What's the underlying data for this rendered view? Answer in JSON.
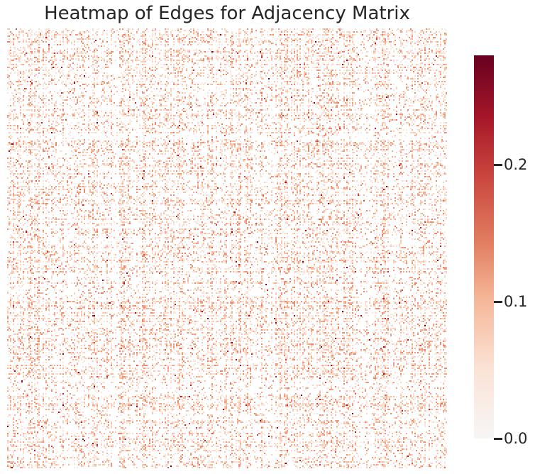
{
  "chart_data": {
    "type": "heatmap",
    "title": "Heatmap of Edges for Adjacency Matrix",
    "xlabel": "",
    "ylabel": "",
    "x_tick_labels": [],
    "y_tick_labels": [],
    "colorbar": {
      "colormap": "RdBu_r (upper half)",
      "range": [
        0,
        0.28
      ],
      "ticks": [
        {
          "value": 0.0,
          "label": "0.0"
        },
        {
          "value": 0.1,
          "label": "0.1"
        },
        {
          "value": 0.2,
          "label": "0.2"
        }
      ]
    },
    "value_distribution": {
      "zero_fraction": 0.55,
      "typical_nonzero_range": [
        0.03,
        0.14
      ],
      "max_value": 0.28
    },
    "grid": false,
    "colors": {
      "min": "#f7f6f6",
      "low": "#fbe3d6",
      "mid_low": "#f5b596",
      "mid": "#e27e61",
      "mid_high": "#c9443e",
      "high": "#a51628",
      "max": "#67001f",
      "text": "#262626"
    }
  }
}
